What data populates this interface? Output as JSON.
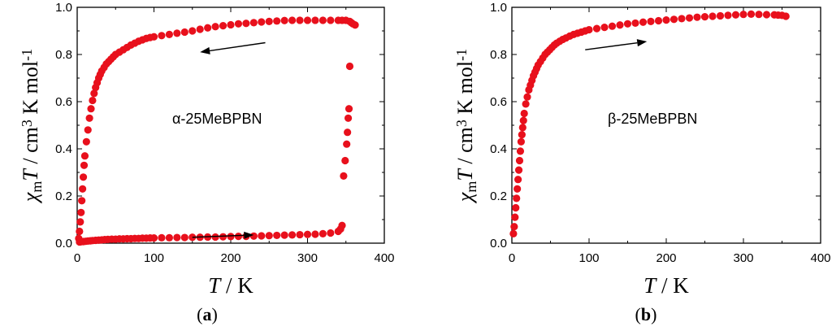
{
  "chart_data": [
    {
      "type": "scatter",
      "panel": "a",
      "caption": "(a)",
      "annotation": "α-25MeBPBN",
      "xlabel": {
        "var": "T",
        "unit": "K"
      },
      "ylabel": {
        "var": "χ",
        "sub": "m",
        "var2": "T",
        "unit": "cm",
        "exp1": "3",
        "unit2": "K mol",
        "exp2": "-1"
      },
      "xlim": [
        0,
        400
      ],
      "ylim": [
        0,
        1.0
      ],
      "x_ticks": [
        0,
        100,
        200,
        300,
        400
      ],
      "y_ticks": [
        0.0,
        0.2,
        0.4,
        0.6,
        0.8,
        1.0
      ],
      "x_tick_labels": [
        "0",
        "100",
        "200",
        "300",
        "400"
      ],
      "y_tick_labels": [
        "0.0",
        "0.2",
        "0.4",
        "0.6",
        "0.8",
        "1.0"
      ],
      "marker_color": "#e8101c",
      "arrows": [
        {
          "from": [
            245,
            0.85
          ],
          "to": [
            160,
            0.81
          ],
          "direction": "cooling"
        },
        {
          "from": [
            150,
            0.025
          ],
          "to": [
            230,
            0.035
          ],
          "direction": "heating"
        }
      ],
      "series": [
        {
          "name": "cooling",
          "x": [
            362,
            359,
            357,
            355,
            350,
            345,
            340,
            330,
            320,
            310,
            300,
            290,
            280,
            270,
            260,
            250,
            240,
            230,
            220,
            210,
            200,
            190,
            180,
            170,
            160,
            150,
            140,
            130,
            120,
            110,
            100,
            95,
            90,
            85,
            80,
            75,
            70,
            65,
            60,
            55,
            50,
            47,
            44,
            41,
            38,
            35,
            32,
            30,
            28,
            26,
            24,
            22,
            20,
            18,
            16,
            14,
            12,
            10,
            9,
            8,
            7,
            6,
            5,
            4,
            3,
            2
          ],
          "y": [
            0.925,
            0.93,
            0.935,
            0.94,
            0.945,
            0.945,
            0.945,
            0.945,
            0.945,
            0.945,
            0.945,
            0.945,
            0.945,
            0.944,
            0.942,
            0.94,
            0.938,
            0.935,
            0.932,
            0.93,
            0.926,
            0.922,
            0.918,
            0.913,
            0.907,
            0.9,
            0.895,
            0.89,
            0.885,
            0.88,
            0.875,
            0.872,
            0.868,
            0.862,
            0.856,
            0.848,
            0.84,
            0.83,
            0.82,
            0.81,
            0.8,
            0.79,
            0.78,
            0.77,
            0.76,
            0.745,
            0.73,
            0.715,
            0.7,
            0.68,
            0.66,
            0.635,
            0.605,
            0.57,
            0.53,
            0.48,
            0.43,
            0.37,
            0.33,
            0.28,
            0.23,
            0.18,
            0.13,
            0.09,
            0.05,
            0.02
          ]
        },
        {
          "name": "heating",
          "x": [
            3,
            5,
            8,
            11,
            14,
            17,
            20,
            24,
            28,
            32,
            36,
            40,
            45,
            50,
            55,
            60,
            65,
            70,
            75,
            80,
            85,
            90,
            95,
            100,
            110,
            120,
            130,
            140,
            150,
            160,
            170,
            180,
            190,
            200,
            210,
            220,
            230,
            240,
            250,
            260,
            270,
            280,
            290,
            300,
            310,
            320,
            330,
            340,
            343,
            345,
            347,
            349,
            351,
            352,
            353,
            354,
            355
          ],
          "y": [
            0.005,
            0.006,
            0.007,
            0.008,
            0.009,
            0.01,
            0.011,
            0.012,
            0.013,
            0.014,
            0.015,
            0.016,
            0.017,
            0.017,
            0.018,
            0.018,
            0.019,
            0.019,
            0.02,
            0.02,
            0.021,
            0.021,
            0.022,
            0.022,
            0.023,
            0.023,
            0.024,
            0.024,
            0.025,
            0.025,
            0.026,
            0.026,
            0.027,
            0.028,
            0.029,
            0.029,
            0.03,
            0.031,
            0.032,
            0.033,
            0.034,
            0.035,
            0.036,
            0.037,
            0.038,
            0.04,
            0.043,
            0.05,
            0.06,
            0.075,
            0.285,
            0.35,
            0.42,
            0.47,
            0.53,
            0.57,
            0.75
          ]
        }
      ]
    },
    {
      "type": "scatter",
      "panel": "b",
      "caption": "(b)",
      "annotation": "β-25MeBPBN",
      "xlabel": {
        "var": "T",
        "unit": "K"
      },
      "ylabel": {
        "var": "χ",
        "sub": "m",
        "var2": "T",
        "unit": "cm",
        "exp1": "3",
        "unit2": "K mol",
        "exp2": "-1"
      },
      "xlim": [
        0,
        400
      ],
      "ylim": [
        0,
        1.0
      ],
      "x_ticks": [
        0,
        100,
        200,
        300,
        400
      ],
      "y_ticks": [
        0.0,
        0.2,
        0.4,
        0.6,
        0.8,
        1.0
      ],
      "x_tick_labels": [
        "0",
        "100",
        "200",
        "300",
        "400"
      ],
      "y_tick_labels": [
        "0.0",
        "0.2",
        "0.4",
        "0.6",
        "0.8",
        "1.0"
      ],
      "marker_color": "#e8101c",
      "arrows": [
        {
          "from": [
            95,
            0.82
          ],
          "to": [
            175,
            0.855
          ],
          "direction": "heating"
        }
      ],
      "series": [
        {
          "name": "data",
          "x": [
            2,
            3,
            4,
            5,
            6,
            7,
            8,
            9,
            10,
            11,
            12,
            13,
            14,
            15,
            16,
            18,
            20,
            22,
            24,
            26,
            28,
            30,
            32,
            34,
            37,
            40,
            43,
            46,
            49,
            52,
            55,
            58,
            62,
            66,
            70,
            75,
            80,
            85,
            90,
            95,
            100,
            110,
            120,
            130,
            140,
            150,
            160,
            170,
            180,
            190,
            200,
            210,
            220,
            230,
            240,
            250,
            260,
            270,
            280,
            290,
            300,
            310,
            320,
            330,
            340,
            345,
            350,
            355
          ],
          "y": [
            0.04,
            0.07,
            0.11,
            0.15,
            0.19,
            0.23,
            0.27,
            0.31,
            0.35,
            0.39,
            0.43,
            0.46,
            0.49,
            0.52,
            0.55,
            0.59,
            0.62,
            0.65,
            0.67,
            0.69,
            0.71,
            0.725,
            0.74,
            0.755,
            0.77,
            0.785,
            0.8,
            0.81,
            0.82,
            0.83,
            0.84,
            0.848,
            0.856,
            0.864,
            0.87,
            0.878,
            0.885,
            0.89,
            0.895,
            0.9,
            0.905,
            0.91,
            0.915,
            0.92,
            0.925,
            0.93,
            0.933,
            0.937,
            0.94,
            0.943,
            0.946,
            0.949,
            0.952,
            0.955,
            0.958,
            0.96,
            0.962,
            0.964,
            0.966,
            0.968,
            0.97,
            0.971,
            0.97,
            0.969,
            0.968,
            0.967,
            0.966,
            0.962
          ]
        }
      ]
    }
  ]
}
